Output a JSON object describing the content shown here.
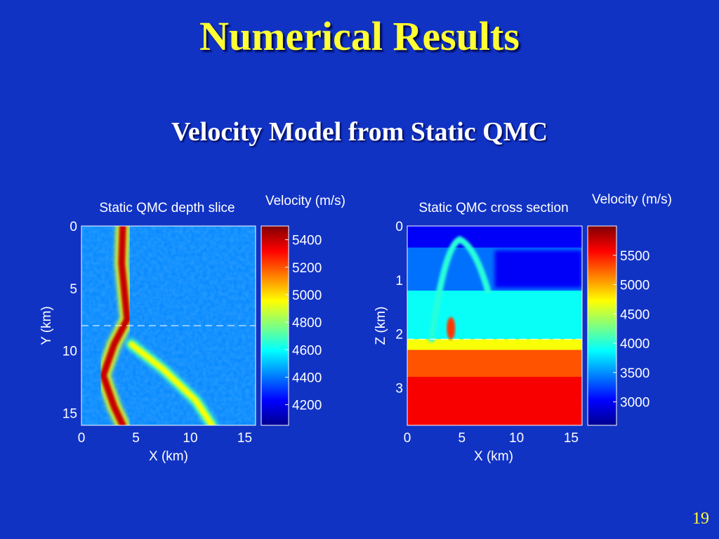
{
  "slide": {
    "title": "Numerical Results",
    "subtitle": "Velocity Model from Static QMC",
    "page_number": "19"
  },
  "colors": {
    "background": "#1133c4",
    "title": "#ffff33",
    "text": "#ffffff"
  },
  "chart_data": [
    {
      "type": "heatmap",
      "title": "Static QMC depth slice",
      "xlabel": "X (km)",
      "ylabel": "Y (km)",
      "xlim": [
        0,
        16
      ],
      "ylim": [
        16,
        0
      ],
      "xticks": [
        "0",
        "5",
        "10",
        "15"
      ],
      "yticks": [
        "0",
        "5",
        "10",
        "15"
      ],
      "colorbar": {
        "label": "Velocity (m/s)",
        "range": [
          4050,
          5500
        ],
        "ticks": [
          "5400",
          "5200",
          "5000",
          "4800",
          "4600",
          "4400",
          "4200"
        ]
      },
      "dashed_line_y": 8,
      "features": {
        "background_velocity": 4420,
        "fast_band_1": {
          "velocity": 5400,
          "path": [
            [
              3.8,
              0
            ],
            [
              3.7,
              3
            ],
            [
              4.2,
              7.5
            ],
            [
              3.0,
              9.5
            ],
            [
              2.0,
              12
            ],
            [
              3.0,
              14.5
            ],
            [
              3.8,
              16
            ]
          ]
        },
        "fast_band_2": {
          "velocity": 4950,
          "path": [
            [
              4.6,
              9.5
            ],
            [
              7.5,
              11.5
            ],
            [
              10.5,
              14
            ],
            [
              12.0,
              16
            ]
          ]
        }
      }
    },
    {
      "type": "heatmap",
      "title": "Static QMC cross section",
      "xlabel": "X (km)",
      "ylabel": "Z (km)",
      "xlim": [
        0,
        16
      ],
      "ylim": [
        3.7,
        0
      ],
      "xticks": [
        "0",
        "5",
        "10",
        "15"
      ],
      "yticks": [
        "0",
        "1",
        "2",
        "3"
      ],
      "colorbar": {
        "label": "Velocity (m/s)",
        "range": [
          2600,
          6000
        ],
        "ticks": [
          "5500",
          "5000",
          "4500",
          "4000",
          "3500",
          "3000"
        ]
      },
      "dashed_line_z": 2.1,
      "layers": [
        {
          "z_top": 0,
          "z_bottom": 0.4,
          "velocity": 3000
        },
        {
          "z_top": 0.4,
          "z_bottom": 1.2,
          "velocity": 3400
        },
        {
          "z_top": 1.2,
          "z_bottom": 2.1,
          "velocity": 3900
        },
        {
          "z_top": 2.1,
          "z_bottom": 2.3,
          "velocity": 4700
        },
        {
          "z_top": 2.3,
          "z_bottom": 2.8,
          "velocity": 5300
        },
        {
          "z_top": 2.8,
          "z_bottom": 3.7,
          "velocity": 5600
        }
      ],
      "features": {
        "slow_pocket": {
          "x_range": [
            8,
            16
          ],
          "z_range": [
            0.4,
            1.2
          ],
          "velocity": 3000
        },
        "dome": {
          "apex_x": 4.8,
          "apex_z": 0.25,
          "velocity": 4000
        },
        "fast_spot": {
          "x": 4,
          "z": 1.9,
          "velocity": 5400
        }
      }
    }
  ]
}
